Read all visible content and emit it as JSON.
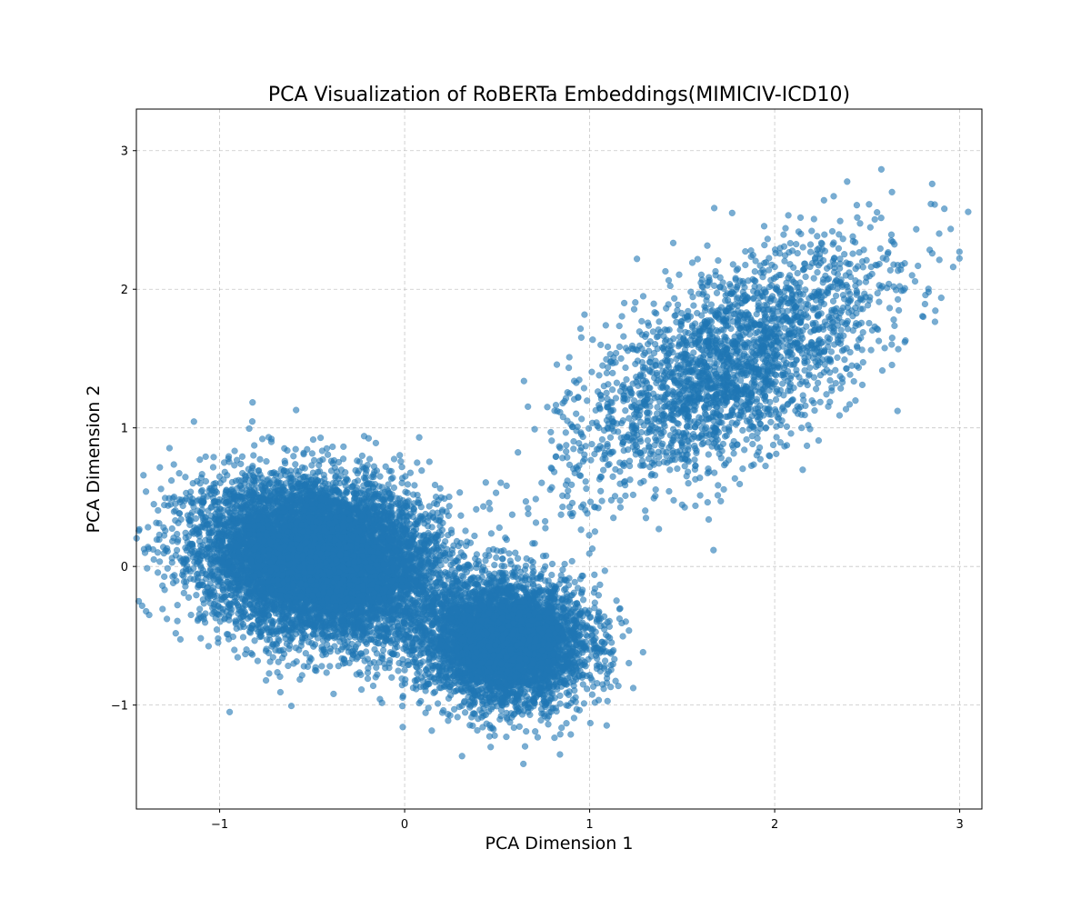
{
  "chart_data": {
    "type": "scatter",
    "title": "PCA Visualization of RoBERTa Embeddings(MIMICIV-ICD10)",
    "xlabel": "PCA Dimension 1",
    "ylabel": "PCA Dimension 2",
    "xlim": [
      -1.45,
      3.12
    ],
    "ylim": [
      -1.75,
      3.3
    ],
    "xticks": [
      -1,
      0,
      1,
      2,
      3
    ],
    "yticks": [
      -1,
      0,
      1,
      2,
      3
    ],
    "xtick_labels": [
      "−1",
      "0",
      "1",
      "2",
      "3"
    ],
    "ytick_labels": [
      "−1",
      "0",
      "1",
      "2",
      "3"
    ],
    "grid": true,
    "point_color": "#1f77b4",
    "point_alpha": 0.6,
    "clusters": [
      {
        "description": "dense main cluster, left lobe",
        "center": [
          -0.45,
          0.05
        ],
        "spread": [
          0.32,
          0.28
        ],
        "count": 9000
      },
      {
        "description": "dense main cluster, right lobe",
        "center": [
          0.55,
          -0.55
        ],
        "spread": [
          0.22,
          0.22
        ],
        "count": 5000
      },
      {
        "description": "sparse upper-right cluster",
        "center": [
          1.75,
          1.45
        ],
        "spread": [
          0.45,
          0.55
        ],
        "count": 2500
      }
    ]
  }
}
